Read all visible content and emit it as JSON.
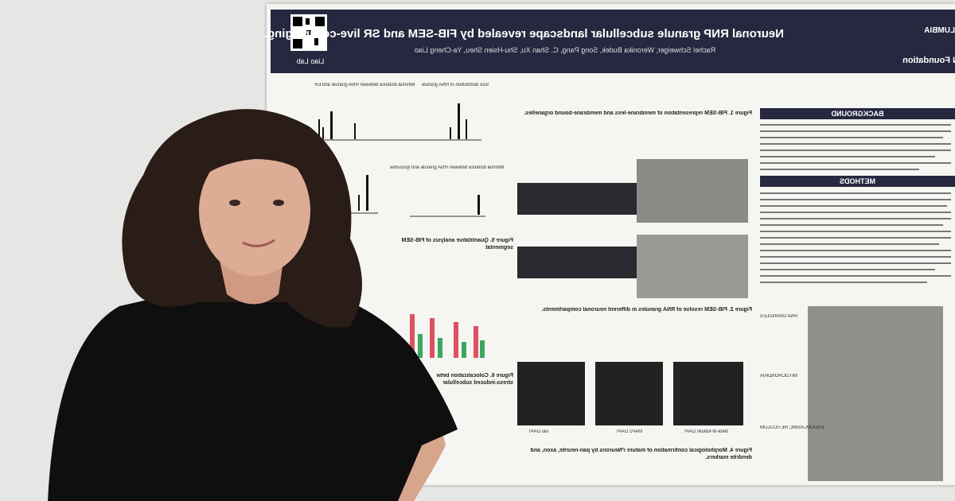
{
  "poster": {
    "title": "Neuronal RNP granule subcellular landscape revealed by FIB-SEM and SR live-cell imaging.",
    "authors": "Rachel Schweiger, Weronika Budek, Song Pang, C. Shan Xu, Shu-Hsien Sheu, Ya-Cheng Liao",
    "lab": "Liao Lab",
    "institution": "LUMBIA",
    "sponsor": "N Foundation",
    "sections": [
      "BACKGROUND",
      "METHODS"
    ],
    "figures": [
      "Figure 1. FIB-SEM representation of membrane-less and membrane-bound organelles.",
      "Figure 2. FIB-SEM resolve of RNA granules in different neuronal compartments.",
      "Figure 4. Morphological confirmation of mature i³Neurons by pan-neurite, axon, and dendrite markers.",
      "Figure 5. Quantitative analysis of FIB-SEM segmentat",
      "Figure 6. Colocalization betw stress-induced subcellular"
    ],
    "graph_titles": [
      "Size distribution of RNA granule",
      "Minimal distance between RNA granule and ER",
      "Minimal distance between RNA granule and lysosome"
    ],
    "stain_labels": [
      "Beta-III-tubulin DAPI",
      "MAP2 DAPI",
      "Tau DAPI"
    ],
    "em_labels": [
      "RNA GRANULES",
      "MITOCHONDRIA",
      "ENDOPLASMIC RETICULUM"
    ]
  }
}
